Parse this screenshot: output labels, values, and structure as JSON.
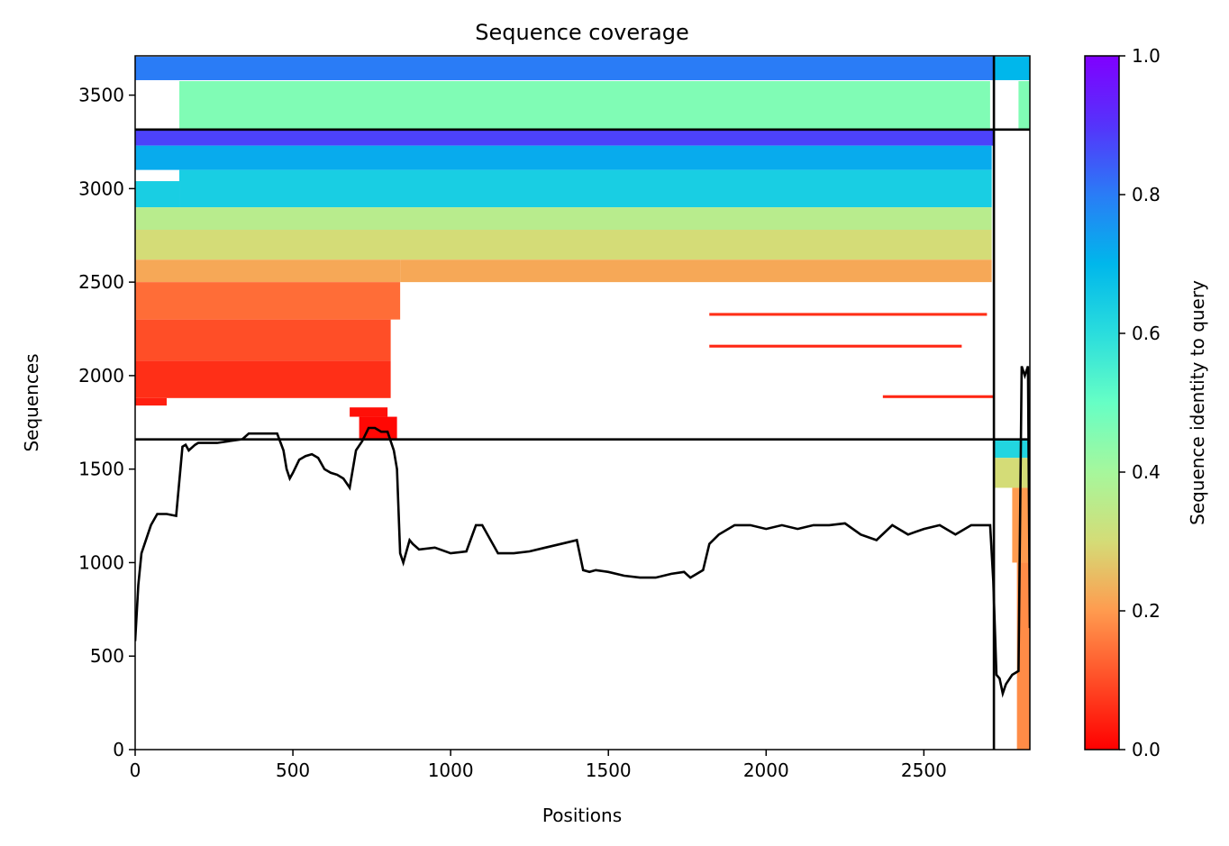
{
  "chart_data": {
    "type": "heatmap",
    "title": "Sequence coverage",
    "xlabel": "Positions",
    "ylabel": "Sequences",
    "colorbar_label": "Sequence identity to query",
    "xlim": [
      0,
      2836
    ],
    "ylim": [
      0,
      3710
    ],
    "xticks": [
      0,
      500,
      1000,
      1500,
      2000,
      2500
    ],
    "yticks": [
      0,
      500,
      1000,
      1500,
      2000,
      2500,
      3000,
      3500
    ],
    "colorbar_ticks": [
      0.0,
      0.2,
      0.4,
      0.6,
      0.8,
      1.0
    ],
    "colorbar_tick_labels": [
      "0.0",
      "0.2",
      "0.4",
      "0.6",
      "0.8",
      "1.0"
    ],
    "colormap": "rainbow_r",
    "divider_lines": {
      "vertical_x": [
        2722
      ],
      "horizontal_y": [
        1659,
        3316
      ]
    },
    "coverage_blocks": [
      {
        "x0": 0,
        "x1": 2720,
        "y0": 3580,
        "y1": 3705,
        "identity": 0.8
      },
      {
        "x0": 140,
        "x1": 2710,
        "y0": 3320,
        "y1": 3575,
        "identity": 0.46
      },
      {
        "x0": 2800,
        "x1": 2836,
        "y0": 3320,
        "y1": 3575,
        "identity": 0.46
      },
      {
        "x0": 2722,
        "x1": 2836,
        "y0": 3580,
        "y1": 3705,
        "identity": 0.7
      },
      {
        "x0": 0,
        "x1": 2720,
        "y0": 3230,
        "y1": 3316,
        "identity": 0.88
      },
      {
        "x0": 0,
        "x1": 2715,
        "y0": 3100,
        "y1": 3230,
        "identity": 0.72
      },
      {
        "x0": 140,
        "x1": 2715,
        "y0": 2900,
        "y1": 3100,
        "identity": 0.64
      },
      {
        "x0": 0,
        "x1": 140,
        "y0": 2900,
        "y1": 3040,
        "identity": 0.64
      },
      {
        "x0": 0,
        "x1": 2715,
        "y0": 2780,
        "y1": 2900,
        "identity": 0.36
      },
      {
        "x0": 0,
        "x1": 2715,
        "y0": 2620,
        "y1": 2780,
        "identity": 0.3
      },
      {
        "x0": 0,
        "x1": 840,
        "y0": 2500,
        "y1": 2620,
        "identity": 0.22
      },
      {
        "x0": 840,
        "x1": 2715,
        "y0": 2500,
        "y1": 2620,
        "identity": 0.22
      },
      {
        "x0": 0,
        "x1": 840,
        "y0": 2300,
        "y1": 2500,
        "identity": 0.14
      },
      {
        "x0": 0,
        "x1": 810,
        "y0": 2080,
        "y1": 2300,
        "identity": 0.1
      },
      {
        "x0": 0,
        "x1": 810,
        "y0": 1880,
        "y1": 2080,
        "identity": 0.06
      },
      {
        "x0": 0,
        "x1": 100,
        "y0": 1840,
        "y1": 1880,
        "identity": 0.04
      },
      {
        "x0": 680,
        "x1": 800,
        "y0": 1780,
        "y1": 1830,
        "identity": 0.02
      },
      {
        "x0": 710,
        "x1": 830,
        "y0": 1659,
        "y1": 1780,
        "identity": 0.01
      },
      {
        "x0": 1820,
        "x1": 2700,
        "y0": 2320,
        "y1": 2335,
        "identity": 0.06
      },
      {
        "x0": 1820,
        "x1": 2620,
        "y0": 2150,
        "y1": 2165,
        "identity": 0.05
      },
      {
        "x0": 2370,
        "x1": 2720,
        "y0": 1880,
        "y1": 1895,
        "identity": 0.05
      },
      {
        "x0": 2722,
        "x1": 2836,
        "y0": 1560,
        "y1": 1659,
        "identity": 0.62
      },
      {
        "x0": 2722,
        "x1": 2836,
        "y0": 1400,
        "y1": 1560,
        "identity": 0.3
      },
      {
        "x0": 2780,
        "x1": 2836,
        "y0": 1000,
        "y1": 1400,
        "identity": 0.2
      },
      {
        "x0": 2795,
        "x1": 2836,
        "y0": 0,
        "y1": 1000,
        "identity": 0.18
      }
    ],
    "coverage_line": {
      "name": "",
      "x": [
        0,
        10,
        20,
        30,
        50,
        70,
        100,
        130,
        150,
        160,
        170,
        190,
        200,
        230,
        260,
        300,
        340,
        360,
        380,
        420,
        450,
        470,
        480,
        490,
        500,
        520,
        540,
        560,
        580,
        600,
        620,
        640,
        660,
        680,
        700,
        720,
        740,
        760,
        780,
        800,
        820,
        830,
        840,
        850,
        870,
        880,
        900,
        950,
        1000,
        1050,
        1080,
        1100,
        1150,
        1200,
        1250,
        1300,
        1350,
        1400,
        1420,
        1440,
        1460,
        1500,
        1550,
        1600,
        1650,
        1700,
        1740,
        1760,
        1800,
        1820,
        1850,
        1900,
        1950,
        2000,
        2050,
        2100,
        2150,
        2200,
        2250,
        2300,
        2350,
        2400,
        2450,
        2500,
        2550,
        2600,
        2650,
        2700,
        2710,
        2720,
        2730,
        2740,
        2750,
        2760,
        2780,
        2800,
        2810,
        2820,
        2830,
        2836
      ],
      "y": [
        580,
        880,
        1050,
        1100,
        1200,
        1260,
        1260,
        1250,
        1620,
        1630,
        1600,
        1630,
        1640,
        1640,
        1640,
        1650,
        1660,
        1690,
        1690,
        1690,
        1690,
        1600,
        1500,
        1450,
        1480,
        1550,
        1570,
        1580,
        1560,
        1500,
        1480,
        1470,
        1450,
        1400,
        1600,
        1650,
        1720,
        1720,
        1700,
        1700,
        1600,
        1500,
        1050,
        1000,
        1120,
        1100,
        1070,
        1080,
        1050,
        1060,
        1200,
        1200,
        1050,
        1050,
        1060,
        1080,
        1100,
        1120,
        960,
        950,
        960,
        950,
        930,
        920,
        920,
        940,
        950,
        920,
        960,
        1100,
        1150,
        1200,
        1200,
        1180,
        1200,
        1180,
        1200,
        1200,
        1210,
        1150,
        1120,
        1200,
        1150,
        1180,
        1200,
        1150,
        1200,
        1200,
        1200,
        900,
        400,
        380,
        300,
        350,
        400,
        420,
        2050,
        2000,
        2050,
        650
      ]
    }
  }
}
